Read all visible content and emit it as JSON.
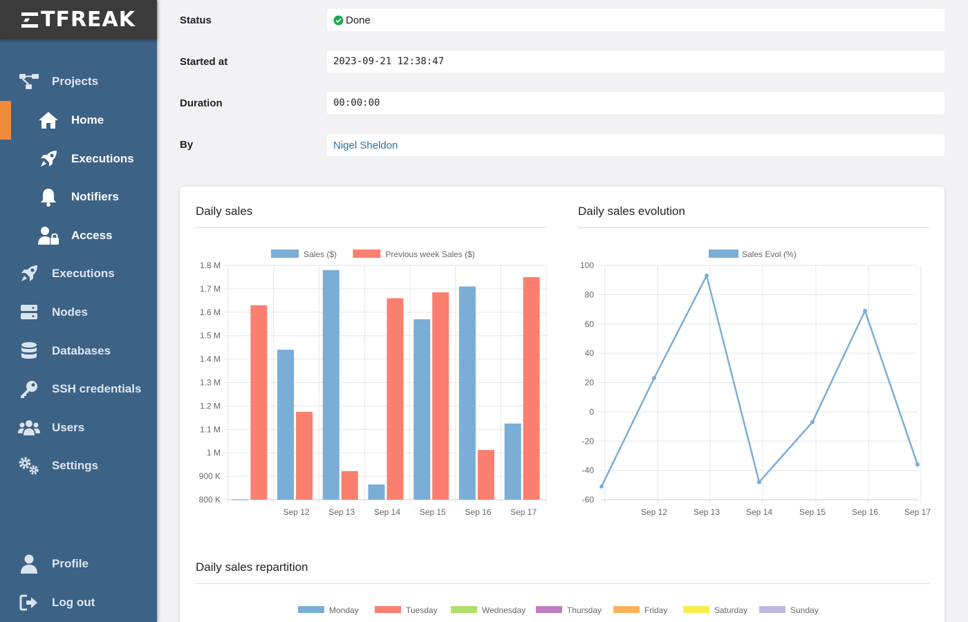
{
  "app": {
    "logo_text": "TFREAK"
  },
  "sidebar": {
    "items": [
      {
        "label": "Projects",
        "icon": "project-diagram-icon"
      },
      {
        "label": "Home",
        "icon": "home-icon",
        "active": true
      },
      {
        "label": "Executions",
        "icon": "rocket-icon"
      },
      {
        "label": "Notifiers",
        "icon": "bell-icon"
      },
      {
        "label": "Access",
        "icon": "user-lock-icon"
      },
      {
        "label": "Executions",
        "icon": "rocket-icon"
      },
      {
        "label": "Nodes",
        "icon": "server-icon"
      },
      {
        "label": "Databases",
        "icon": "database-icon"
      },
      {
        "label": "SSH credentials",
        "icon": "key-icon"
      },
      {
        "label": "Users",
        "icon": "users-icon"
      },
      {
        "label": "Settings",
        "icon": "cogs-icon"
      },
      {
        "label": "Profile",
        "icon": "user-icon"
      },
      {
        "label": "Log out",
        "icon": "sign-out-icon"
      }
    ]
  },
  "details": {
    "status": {
      "label": "Status",
      "value": "Done",
      "icon": "check-circle-icon",
      "color": "#1fa64a"
    },
    "started_at": {
      "label": "Started at",
      "value": "2023-09-21 12:38:47"
    },
    "duration": {
      "label": "Duration",
      "value": "00:00:00"
    },
    "by": {
      "label": "By",
      "value": "Nigel Sheldon"
    }
  },
  "card": {
    "daily_sales_title": "Daily sales",
    "evolution_title": "Daily sales evolution",
    "repartition_title": "Daily sales repartition"
  },
  "chart_data": [
    {
      "type": "bar",
      "title": "Daily sales",
      "categories": [
        "",
        "Sep 12",
        "Sep 13",
        "Sep 14",
        "Sep 15",
        "Sep 16",
        "Sep 17"
      ],
      "series": [
        {
          "name": "Sales ($)",
          "color": "#7aaed6",
          "values": [
            800500,
            1440000,
            1780000,
            865000,
            1570000,
            1710000,
            1125000
          ]
        },
        {
          "name": "Previous week Sales ($)",
          "color": "#fa7f6f",
          "values": [
            1630000,
            1175000,
            922000,
            1660000,
            1685000,
            1012000,
            1750000
          ]
        }
      ],
      "ylim": [
        800000,
        1800000
      ],
      "yticks": [
        800000,
        900000,
        1000000,
        1100000,
        1200000,
        1300000,
        1400000,
        1500000,
        1600000,
        1700000,
        1800000
      ],
      "ytick_labels": [
        "800 K",
        "900 K",
        "1 M",
        "1.1 M",
        "1.2 M",
        "1.3 M",
        "1.4 M",
        "1.5 M",
        "1.6 M",
        "1.7 M",
        "1.8 M"
      ],
      "grid": true,
      "legend": "top"
    },
    {
      "type": "line",
      "title": "Daily sales evolution",
      "categories": [
        "",
        "Sep 12",
        "Sep 13",
        "Sep 14",
        "Sep 15",
        "Sep 16",
        "Sep 17"
      ],
      "series": [
        {
          "name": "Sales Evol (%)",
          "color": "#7aaed6",
          "values": [
            -51,
            23,
            93,
            -48,
            -7,
            69,
            -36
          ]
        }
      ],
      "ylim": [
        -60,
        100
      ],
      "yticks": [
        -60,
        -40,
        -20,
        0,
        20,
        40,
        60,
        80,
        100
      ],
      "grid": true,
      "legend": "top"
    },
    {
      "type": "pie",
      "title": "Daily sales repartition",
      "legend_entries": [
        {
          "name": "Monday",
          "color": "#7aaed6"
        },
        {
          "name": "Tuesday",
          "color": "#fa7f6f"
        },
        {
          "name": "Wednesday",
          "color": "#aee06a"
        },
        {
          "name": "Thursday",
          "color": "#c07cc4"
        },
        {
          "name": "Friday",
          "color": "#f9b25a"
        },
        {
          "name": "Saturday",
          "color": "#f8ee4a"
        },
        {
          "name": "Sunday",
          "color": "#c0b8e0"
        }
      ],
      "legend": "top"
    }
  ]
}
